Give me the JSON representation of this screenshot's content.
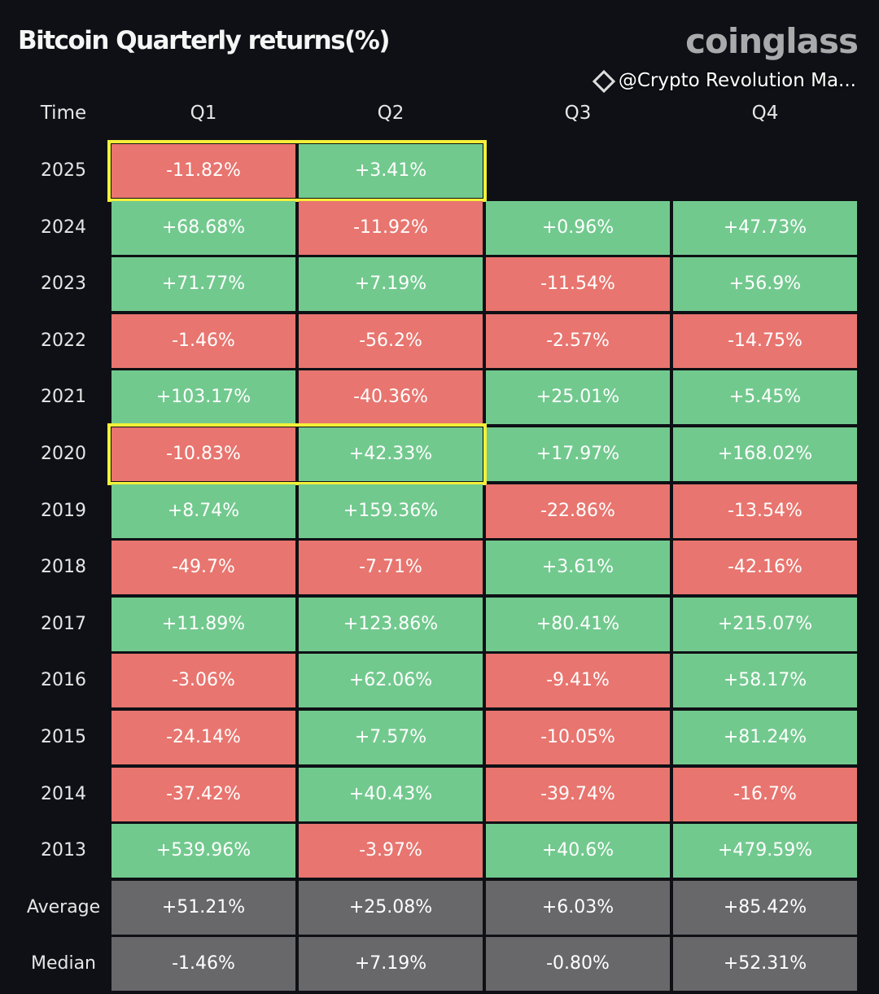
{
  "header": {
    "title": "Bitcoin Quarterly returns(%)",
    "logo": "coinglass"
  },
  "chart_data": {
    "type": "heatmap",
    "title": "Bitcoin Quarterly returns(%)",
    "row_header": "Time",
    "columns": [
      "Q1",
      "Q2",
      "Q3",
      "Q4"
    ],
    "rows": [
      {
        "label": "2025",
        "values": [
          "-11.82%",
          "+3.41%",
          null,
          null
        ],
        "highlight": true
      },
      {
        "label": "2024",
        "values": [
          "+68.68%",
          "-11.92%",
          "+0.96%",
          "+47.73%"
        ]
      },
      {
        "label": "2023",
        "values": [
          "+71.77%",
          "+7.19%",
          "-11.54%",
          "+56.9%"
        ]
      },
      {
        "label": "2022",
        "values": [
          "-1.46%",
          "-56.2%",
          "-2.57%",
          "-14.75%"
        ]
      },
      {
        "label": "2021",
        "values": [
          "+103.17%",
          "-40.36%",
          "+25.01%",
          "+5.45%"
        ]
      },
      {
        "label": "2020",
        "values": [
          "-10.83%",
          "+42.33%",
          "+17.97%",
          "+168.02%"
        ],
        "highlight": true
      },
      {
        "label": "2019",
        "values": [
          "+8.74%",
          "+159.36%",
          "-22.86%",
          "-13.54%"
        ]
      },
      {
        "label": "2018",
        "values": [
          "-49.7%",
          "-7.71%",
          "+3.61%",
          "-42.16%"
        ]
      },
      {
        "label": "2017",
        "values": [
          "+11.89%",
          "+123.86%",
          "+80.41%",
          "+215.07%"
        ]
      },
      {
        "label": "2016",
        "values": [
          "-3.06%",
          "+62.06%",
          "-9.41%",
          "+58.17%"
        ]
      },
      {
        "label": "2015",
        "values": [
          "-24.14%",
          "+7.57%",
          "-10.05%",
          "+81.24%"
        ]
      },
      {
        "label": "2014",
        "values": [
          "-37.42%",
          "+40.43%",
          "-39.74%",
          "-16.7%"
        ]
      },
      {
        "label": "2013",
        "values": [
          "+539.96%",
          "-3.97%",
          "+40.6%",
          "+479.59%"
        ]
      },
      {
        "label": "Average",
        "values": [
          "+51.21%",
          "+25.08%",
          "+6.03%",
          "+85.42%"
        ],
        "summary": true
      },
      {
        "label": "Median",
        "values": [
          "-1.46%",
          "+7.19%",
          "-0.80%",
          "+52.31%"
        ],
        "summary": true
      }
    ],
    "highlight_range": "Q1-Q2"
  },
  "colors": {
    "positive": "#72c98e",
    "negative": "#e8756f",
    "summary": "#68686a",
    "highlight": "#f4f03a",
    "background": "#0e1015"
  },
  "watermark": "@Crypto Revolution Ma..."
}
